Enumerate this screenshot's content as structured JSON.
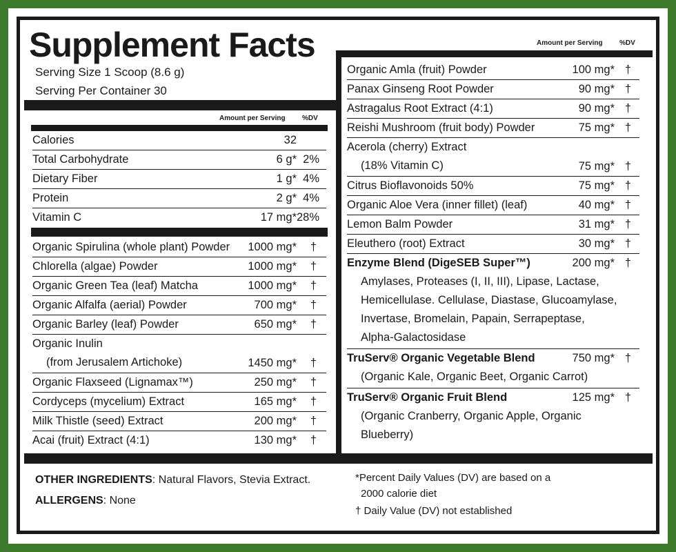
{
  "title": "Supplement Facts",
  "serving_size": "Serving Size 1 Scoop (8.6 g)",
  "servings_per_container": "Serving Per Container 30",
  "header": {
    "amount": "Amount per Serving",
    "dv": "%DV"
  },
  "nutrients": [
    {
      "name": "Calories",
      "amount": "32",
      "dv": ""
    },
    {
      "name": "Total Carbohydrate",
      "amount": "6 g*",
      "dv": "2%"
    },
    {
      "name": "Dietary Fiber",
      "amount": "1 g*",
      "dv": "4%"
    },
    {
      "name": "Protein",
      "amount": "2 g*",
      "dv": "4%"
    },
    {
      "name": "Vitamin C",
      "amount": "17 mg*",
      "dv": "28%"
    }
  ],
  "left_ingredients": [
    {
      "name": "Organic Spirulina (whole plant) Powder",
      "amount": "1000 mg*",
      "dv": "†"
    },
    {
      "name": "Chlorella (algae) Powder",
      "amount": "1000 mg*",
      "dv": "†"
    },
    {
      "name": "Organic Green Tea (leaf) Matcha",
      "amount": "1000 mg*",
      "dv": "†"
    },
    {
      "name": "Organic Alfalfa (aerial) Powder",
      "amount": "700 mg*",
      "dv": "†"
    },
    {
      "name": "Organic Barley (leaf) Powder",
      "amount": "650 mg*",
      "dv": "†"
    },
    {
      "name": "Organic Inulin",
      "sub": "(from Jerusalem Artichoke)",
      "amount": "1450 mg*",
      "dv": "†"
    },
    {
      "name": "Organic Flaxseed (Lignamax™)",
      "amount": "250 mg*",
      "dv": "†"
    },
    {
      "name": "Cordyceps (mycelium) Extract",
      "amount": "165 mg*",
      "dv": "†"
    },
    {
      "name": "Milk Thistle (seed) Extract",
      "amount": "200 mg*",
      "dv": "†"
    },
    {
      "name": "Acai (fruit) Extract (4:1)",
      "amount": "130 mg*",
      "dv": "†"
    }
  ],
  "right_ingredients": [
    {
      "name": "Organic Amla (fruit) Powder",
      "amount": "100 mg*",
      "dv": "†"
    },
    {
      "name": "Panax Ginseng Root Powder",
      "amount": "90 mg*",
      "dv": "†"
    },
    {
      "name": "Astragalus Root Extract (4:1)",
      "amount": "90 mg*",
      "dv": "†"
    },
    {
      "name": "Reishi Mushroom (fruit body) Powder",
      "amount": "75 mg*",
      "dv": "†"
    },
    {
      "name": "Acerola (cherry) Extract",
      "sub": "(18% Vitamin C)",
      "amount": "75 mg*",
      "dv": "†"
    },
    {
      "name": "Citrus Bioflavonoids 50%",
      "amount": "75 mg*",
      "dv": "†"
    },
    {
      "name": "Organic Aloe Vera (inner fillet) (leaf)",
      "amount": "40 mg*",
      "dv": "†"
    },
    {
      "name": "Lemon Balm Powder",
      "amount": "31 mg*",
      "dv": "†"
    },
    {
      "name": "Eleuthero (root) Extract",
      "amount": "30 mg*",
      "dv": "†"
    }
  ],
  "blends": [
    {
      "name": "Enzyme Blend (DigeSEB Super™)",
      "amount": "200 mg*",
      "dv": "†",
      "lines": [
        "Amylases, Proteases (I, II, III), Lipase, Lactase,",
        "Hemicellulase. Cellulase, Diastase, Glucoamylase,",
        "Invertase, Bromelain, Papain, Serrapeptase,",
        "Alpha-Galactosidase"
      ]
    },
    {
      "name": "TruServ® Organic Vegetable Blend",
      "amount": "750 mg*",
      "dv": "†",
      "lines": [
        "(Organic Kale, Organic Beet, Organic Carrot)"
      ]
    },
    {
      "name": "TruServ® Organic Fruit Blend",
      "amount": "125 mg*",
      "dv": "†",
      "lines": [
        "(Organic Cranberry, Organic Apple, Organic",
        "Blueberry)"
      ]
    }
  ],
  "footer": {
    "other_label": "OTHER INGREDIENTS",
    "other_value": ": Natural Flavors, Stevia Extract.",
    "allergens_label": "ALLERGENS",
    "allergens_value": ": None",
    "note1a": "*Percent Daily Values (DV) are based on a",
    "note1b": "2000 calorie diet",
    "note2": "† Daily Value (DV) not established"
  },
  "colors": {
    "border_green": "#3d7a2b",
    "ink": "#1a1a1a"
  }
}
